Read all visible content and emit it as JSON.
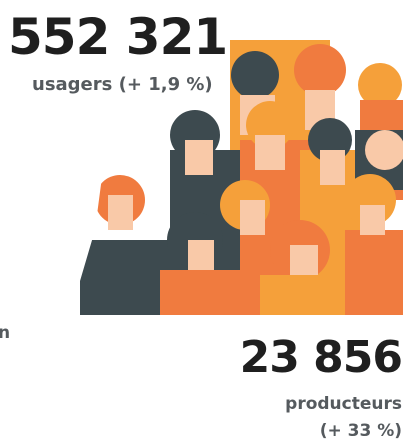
{
  "stat_top": {
    "value": "552 321",
    "label": "usagers (+ 1,9 %)"
  },
  "side_text": "n",
  "stat_bottom": {
    "value": "23 856",
    "label": "producteurs",
    "change": "(+ 33 %)"
  }
}
